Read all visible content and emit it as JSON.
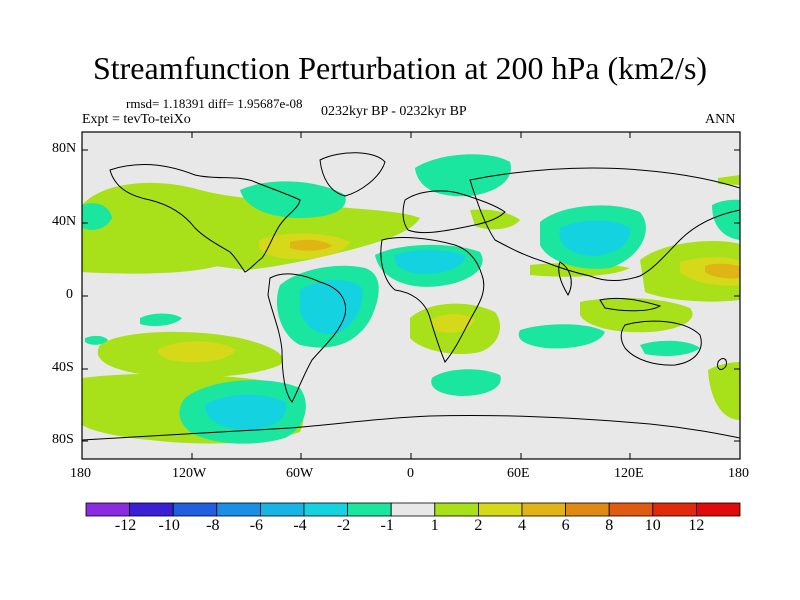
{
  "header": {
    "title": "Streamfunction Perturbation at 200 hPa (km2/s)",
    "stats": "rmsd= 1.18391 diff= 1.95687e-08",
    "expt": "Expt = tevTo-teiXo",
    "period": "0232kyr BP - 0232kyr BP",
    "season": "ANN"
  },
  "map": {
    "y_ticks": [
      "80N",
      "40N",
      "0",
      "40S",
      "80S"
    ],
    "x_ticks": [
      "180",
      "120W",
      "60W",
      "0",
      "60E",
      "120E",
      "180"
    ]
  },
  "colorbar": {
    "labels": [
      "-12",
      "-10",
      "-8",
      "-6",
      "-4",
      "-2",
      "-1",
      "1",
      "2",
      "4",
      "6",
      "8",
      "10",
      "12"
    ],
    "colors": [
      "#8a2be2",
      "#3a1fd6",
      "#1f5fe0",
      "#1a8fe6",
      "#18b4e6",
      "#14d2e0",
      "#1ae6a0",
      "#e8e8e8",
      "#a8e01a",
      "#d6d81a",
      "#e0b414",
      "#e08a14",
      "#e05a10",
      "#e02a0a",
      "#e00a0a"
    ]
  }
}
